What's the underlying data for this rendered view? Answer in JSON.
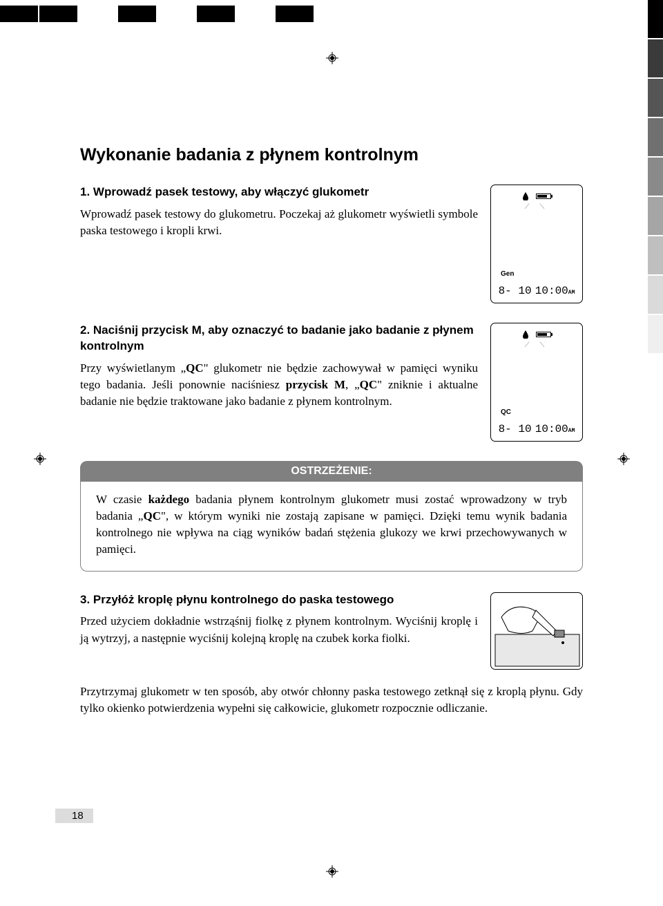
{
  "colorbar_top": [
    "#000000",
    "#000000",
    "#ffffff",
    "#000000",
    "#ffffff",
    "#000000",
    "#ffffff",
    "#000000"
  ],
  "colorbar_side": [
    "#000000",
    "#3a3a3a",
    "#555555",
    "#707070",
    "#8a8a8a",
    "#a5a5a5",
    "#bfbfbf",
    "#dadada",
    "#efefef",
    "#ffffff"
  ],
  "title": "Wykonanie badania z płynem kontrolnym",
  "step1": {
    "head": "1. Wprowadź pasek testowy, aby włączyć glukometr",
    "body": "Wprowadź pasek testowy do glukometru. Poczekaj aż glukometr wyświetli symbole paska testowego i kropli krwi."
  },
  "device1": {
    "mode": "Gen",
    "date": "8- 10",
    "time": "10:00",
    "ampm": "AM"
  },
  "step2": {
    "head": "2. Naciśnij przycisk M, aby oznaczyć to badanie jako badanie z płynem kontrolnym",
    "body_a": "Przy wyświetlanym „",
    "body_qc1": "QC",
    "body_b": "\" glukometr nie będzie zachowywał w pamięci wyniku tego badania. Jeśli ponownie naciśniesz ",
    "body_pm": "przycisk M",
    "body_c": ", „",
    "body_qc2": "QC",
    "body_d": "\" zniknie i aktualne badanie nie będzie traktowane jako badanie z płynem kontrolnym."
  },
  "device2": {
    "mode": "QC",
    "date": "8- 10",
    "time": "10:00",
    "ampm": "AM"
  },
  "warning": {
    "title": "OSTRZEŻENIE:",
    "body_a": "W czasie ",
    "body_b": "każdego",
    "body_c": " badania płynem kontrolnym glukometr musi zostać wprowadzony w tryb badania „",
    "body_qc": "QC",
    "body_d": "\", w którym wyniki nie zostają zapisane w pamięci. Dzięki temu wynik badania kontrolnego nie wpływa na ciąg wyników badań stężenia glukozy we krwi przechowywanych w pamięci."
  },
  "step3": {
    "head": "3. Przyłóż kroplę płynu kontrolnego do paska testowego",
    "body": "Przed użyciem dokładnie wstrząśnij fiolkę z płynem kontrolnym. Wyciśnij kroplę i ją wytrzyj, a następnie wyciśnij kolejną kroplę na czubek korka fiolki."
  },
  "step3_extra": "Przytrzymaj glukometr w ten sposób, aby otwór chłonny paska testowego zetknął się z kroplą płynu. Gdy tylko okienko potwierdzenia wypełni się całkowicie, glukometr rozpocznie odliczanie.",
  "page_number": "18"
}
